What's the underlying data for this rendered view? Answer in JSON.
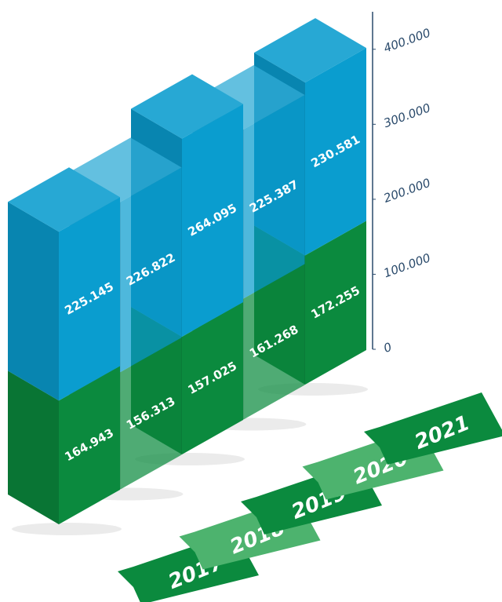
{
  "chart_data": {
    "type": "bar",
    "stacked": true,
    "categories": [
      "2017",
      "2018",
      "2019",
      "2020",
      "2021"
    ],
    "series": [
      {
        "color": "#0b8a3e",
        "values": [
          164943,
          156313,
          157025,
          161268,
          172255
        ],
        "value_labels": [
          "164.943",
          "156.313",
          "157.025",
          "161.268",
          "172.255"
        ]
      },
      {
        "color": "#0a9dcf",
        "values": [
          225145,
          226822,
          264095,
          225387,
          230581
        ],
        "value_labels": [
          "225.145",
          "226.822",
          "264.095",
          "225.387",
          "230.581"
        ]
      }
    ],
    "ylim": [
      0,
      450000
    ],
    "yticks": [
      0,
      {
        "value": 100000,
        "label": "100.000"
      },
      {
        "value": 200000,
        "label": "200.000"
      },
      {
        "value": 300000,
        "label": "300.000"
      },
      {
        "value": 400000,
        "label": "400.000"
      }
    ]
  }
}
